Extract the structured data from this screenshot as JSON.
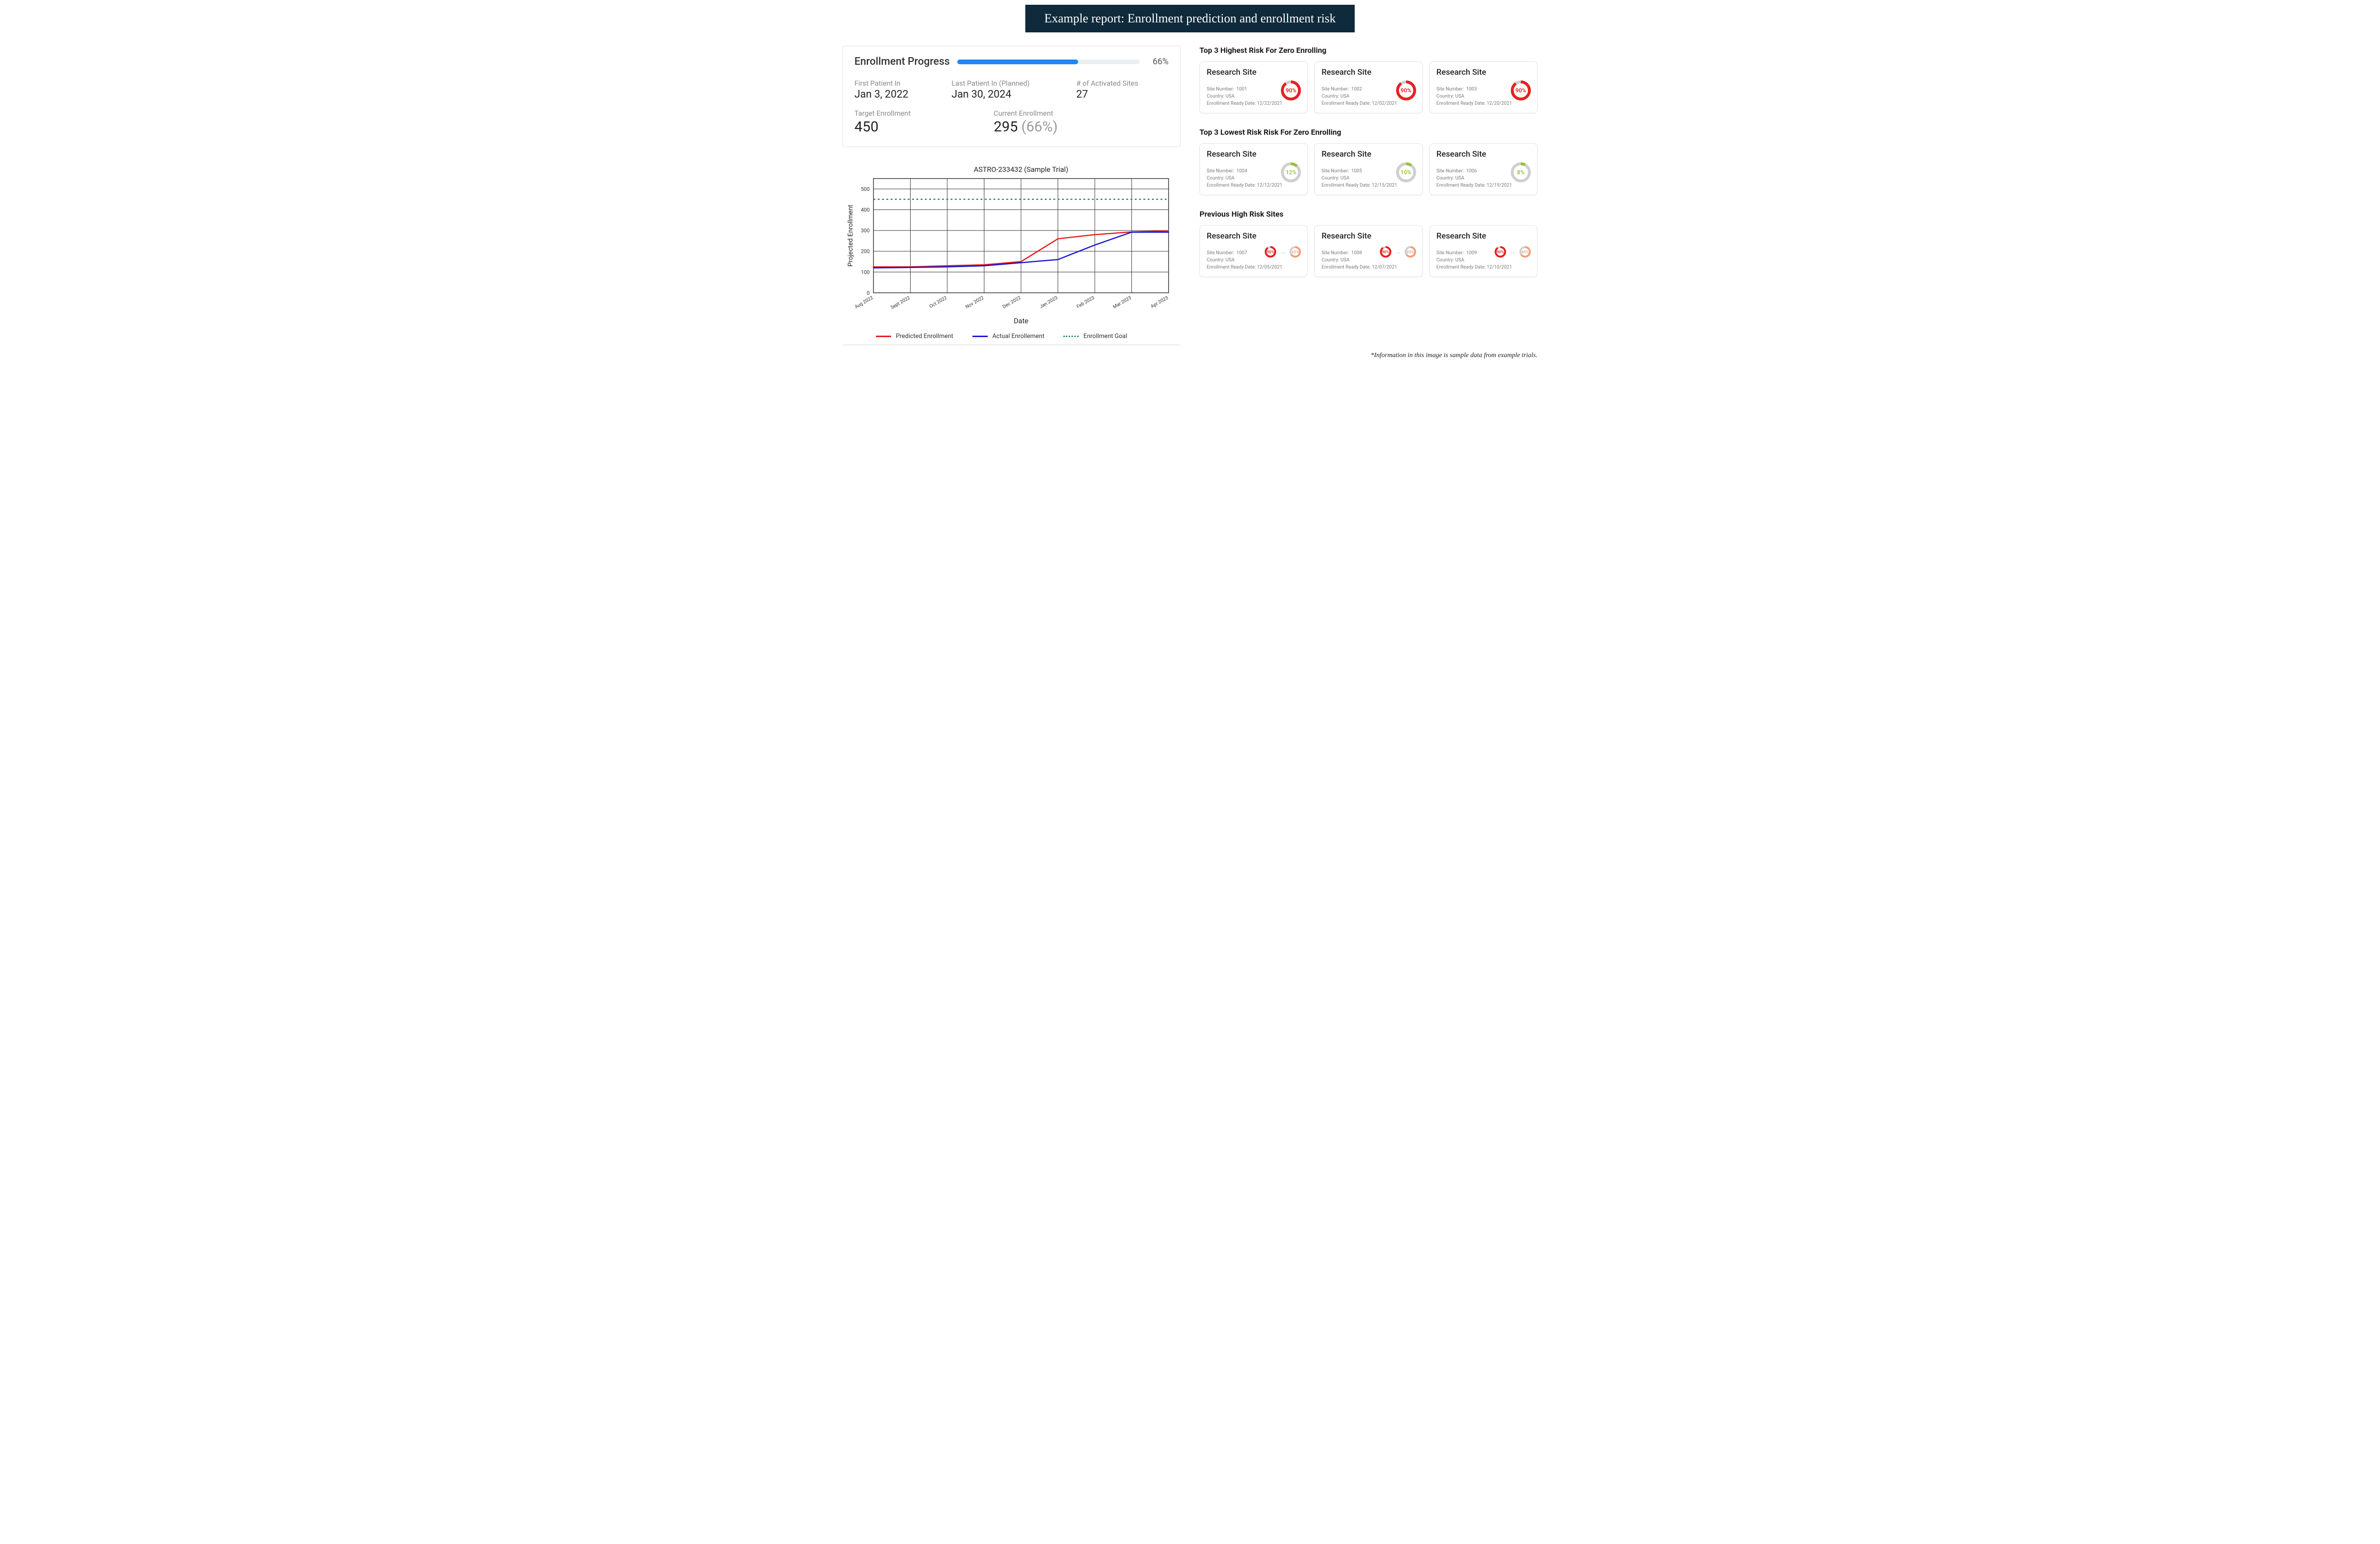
{
  "header": {
    "title": "Example report: Enrollment prediction and enrollment risk",
    "bg_color": "#0e2a3b",
    "text_color": "#ffffff"
  },
  "progress": {
    "title": "Enrollment Progress",
    "percent": 66,
    "percent_label": "66%",
    "bar_fill_color": "#1e88f5",
    "bar_track_color": "#eceff1",
    "metrics": {
      "first_patient_label": "First Patient In",
      "first_patient_value": "Jan 3, 2022",
      "last_patient_label": "Last Patient In (Planned)",
      "last_patient_value": "Jan 30, 2024",
      "activated_sites_label": "# of Activated Sites",
      "activated_sites_value": "27",
      "target_label": "Target Enrollment",
      "target_value": "450",
      "current_label": "Current Enrollment",
      "current_value": "295",
      "current_pct": "(66%)"
    }
  },
  "chart": {
    "title": "ASTRO-233432 (Sample Trial)",
    "x_label": "Date",
    "y_label": "Projected Enrollment",
    "y_min": 0,
    "y_max": 550,
    "y_ticks": [
      0,
      100,
      200,
      300,
      400,
      500
    ],
    "x_categories": [
      "Aug 2022",
      "Sept 2022",
      "Oct 2022",
      "Nov 2022",
      "Dec 2022",
      "Jan 2023",
      "Feb 2023",
      "Mar 2023",
      "Apr 2023"
    ],
    "goal_value": 450,
    "goal_color": "#2e8b57",
    "predicted": {
      "color": "#e41a1c",
      "values": [
        125,
        125,
        130,
        135,
        150,
        260,
        280,
        293,
        298
      ]
    },
    "actual": {
      "color": "#1616d6",
      "values": [
        120,
        122,
        125,
        130,
        145,
        160,
        230,
        292,
        292
      ]
    },
    "grid_color": "#333333",
    "background": "#ffffff",
    "legend": {
      "predicted": "Predicted Enrollment",
      "actual": "Actual Enrollement",
      "goal": "Enrollment Goal"
    }
  },
  "risk": {
    "high_title": "Top 3 Highest Risk For Zero Enrolling",
    "low_title": "Top 3 Lowest Risk Risk For Zero Enrolling",
    "prev_title": "Previous High Risk Sites",
    "high_color": "#e62020",
    "low_color": "#9bbf3b",
    "track_color": "#cfcfcf",
    "high": [
      {
        "name": "Research Site",
        "site_no": "1001",
        "country": "USA",
        "ready": "12/22/2021",
        "pct": 90,
        "pct_label": "90%"
      },
      {
        "name": "Research Site",
        "site_no": "1002",
        "country": "USA",
        "ready": "12/02/2021",
        "pct": 90,
        "pct_label": "90%"
      },
      {
        "name": "Research Site",
        "site_no": "1003",
        "country": "USA",
        "ready": "12/20/2021",
        "pct": 90,
        "pct_label": "90%"
      }
    ],
    "low": [
      {
        "name": "Research Site",
        "site_no": "1004",
        "country": "USA",
        "ready": "12/12/2021",
        "pct": 12,
        "pct_label": "12%"
      },
      {
        "name": "Research Site",
        "site_no": "1005",
        "country": "USA",
        "ready": "12/15/2021",
        "pct": 10,
        "pct_label": "10%"
      },
      {
        "name": "Research Site",
        "site_no": "1006",
        "country": "USA",
        "ready": "12/19/2021",
        "pct": 8,
        "pct_label": "8%"
      }
    ],
    "prev_before_color": "#e62020",
    "prev_after_color": "#f3a077",
    "prev": [
      {
        "name": "Research Site",
        "site_no": "1007",
        "country": "USA",
        "ready": "12/05/2021",
        "before": 90,
        "before_label": "90%",
        "after": 65,
        "after_label": "65%"
      },
      {
        "name": "Research Site",
        "site_no": "1008",
        "country": "USA",
        "ready": "12/07/2021",
        "before": 90,
        "before_label": "90%",
        "after": 65,
        "after_label": "65%"
      },
      {
        "name": "Research Site",
        "site_no": "1009",
        "country": "USA",
        "ready": "12/10/2021",
        "before": 90,
        "before_label": "90%",
        "after": 65,
        "after_label": "65%"
      }
    ],
    "meta_labels": {
      "site_no": "Site Number:",
      "country": "Country:",
      "ready": "Enrollment Ready Date:"
    }
  },
  "footnote": "*Information in this image is sample data from example trials."
}
